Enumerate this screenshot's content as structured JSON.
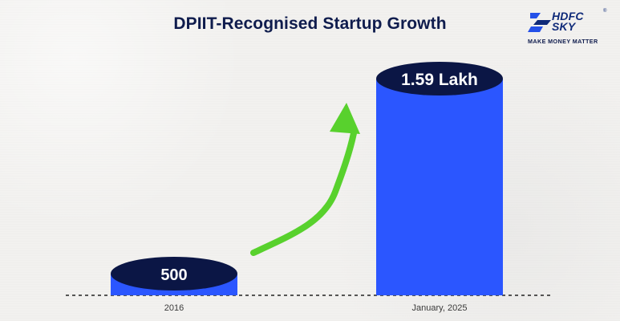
{
  "title": "DPIIT-Recognised Startup Growth",
  "brand": {
    "name": "HDFC\nSKY",
    "registered": "®",
    "tagline": "MAKE MONEY MATTER",
    "icon": "hdfc-sky-logo-icon"
  },
  "colors": {
    "title": "#0f1c4d",
    "bar": "#2b56ff",
    "bar_top": "#0b1645",
    "arrow": "#58d12d",
    "label": "#ffffff"
  },
  "chart_data": {
    "type": "bar",
    "title": "DPIIT-Recognised Startup Growth",
    "categories": [
      "2016",
      "January, 2025"
    ],
    "values": [
      500,
      159000
    ],
    "data_labels": [
      "500",
      "1.59 Lakh"
    ],
    "xlabel": "",
    "ylabel": "",
    "grid": false,
    "legend": "none",
    "arrow": "green curved arrow pointing from 2016 bar to January, 2025 bar"
  }
}
